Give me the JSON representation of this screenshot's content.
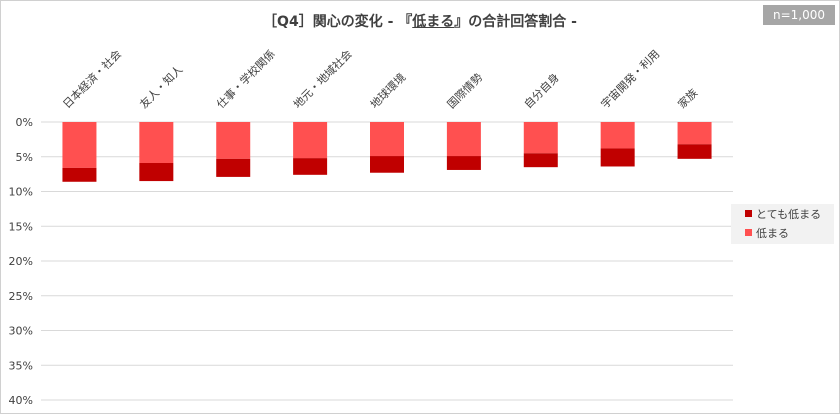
{
  "title_parts": [
    "［Q4］関心の変化 - 『",
    "低まる",
    "』の合計回答割合 -"
  ],
  "sample": "n=1,000",
  "colors": {
    "very_low": "#c00000",
    "low": "#ff5050",
    "grid": "#d9d9d9",
    "text": "#404040"
  },
  "chart_data": {
    "type": "bar",
    "stacked": true,
    "inverted_y": true,
    "categories": [
      "日本経済・社会",
      "友人・知人",
      "仕事・学校関係",
      "地元・地域社会",
      "地球環境",
      "国際情勢",
      "自分自身",
      "宇宙開発・利用",
      "家族"
    ],
    "series": [
      {
        "name": "低まる",
        "values": [
          6.6,
          5.9,
          5.3,
          5.2,
          4.9,
          4.9,
          4.5,
          3.8,
          3.2
        ]
      },
      {
        "name": "とても低まる",
        "values": [
          2.0,
          2.6,
          2.6,
          2.4,
          2.4,
          2.0,
          2.0,
          2.6,
          2.1
        ]
      }
    ],
    "ylim": [
      0,
      40
    ],
    "yticks": [
      "0%",
      "5%",
      "10%",
      "15%",
      "20%",
      "25%",
      "30%",
      "35%",
      "40%"
    ],
    "legend_position": "right",
    "grid": true
  },
  "legend": [
    {
      "label": "とても低まる",
      "color": "#c00000"
    },
    {
      "label": "低まる",
      "color": "#ff5050"
    }
  ]
}
